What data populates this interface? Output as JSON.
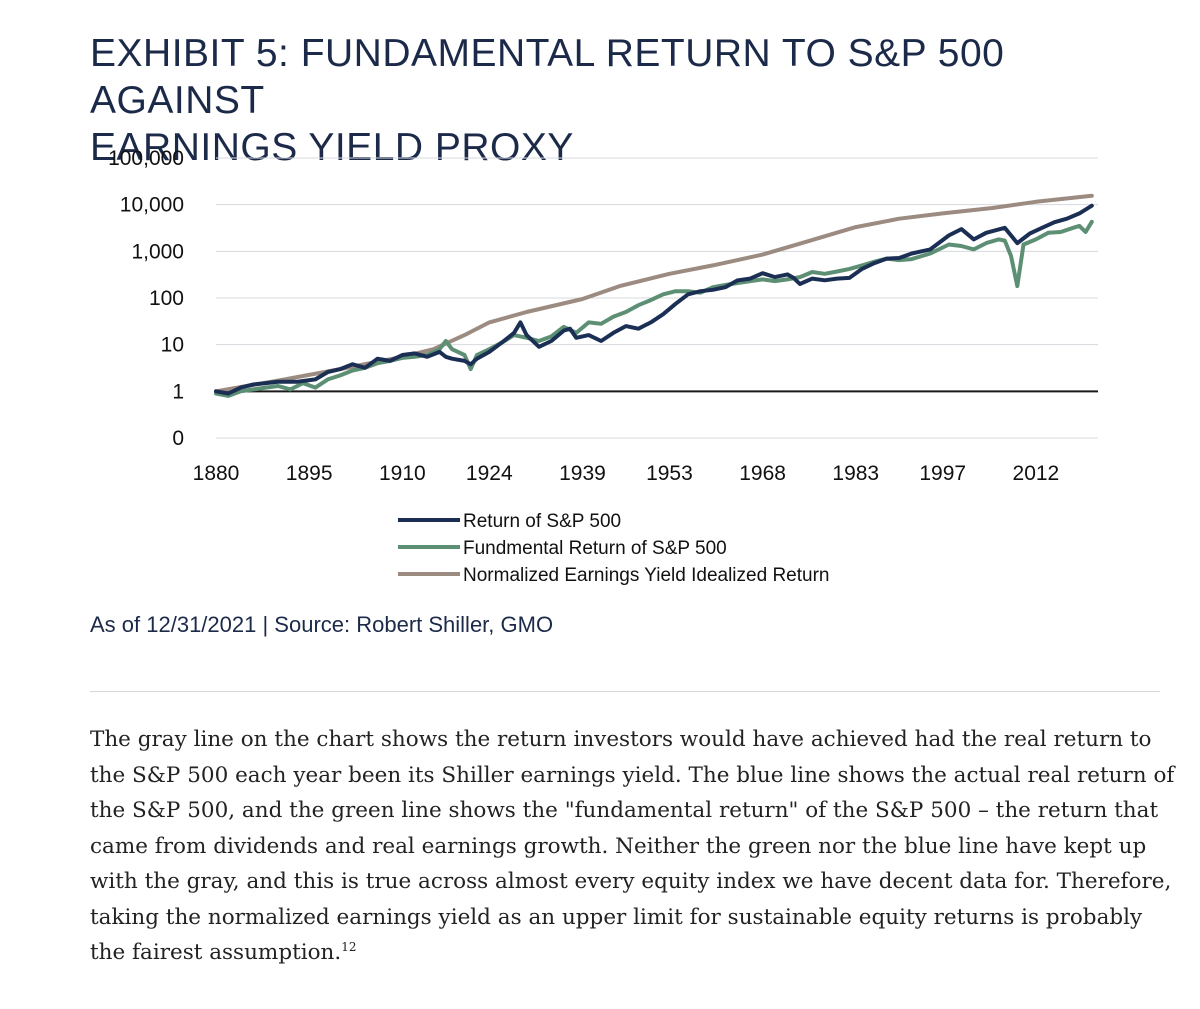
{
  "title": {
    "line1": "EXHIBIT 5: FUNDAMENTAL RETURN TO S&P 500 AGAINST",
    "line2": "EARNINGS YIELD PROXY"
  },
  "chart_data": {
    "type": "line",
    "title": "EXHIBIT 5: FUNDAMENTAL RETURN TO S&P 500 AGAINST EARNINGS YIELD PROXY",
    "xlabel": "",
    "ylabel": "",
    "y_scale": "log",
    "xlim": [
      1880,
      2022
    ],
    "x_ticks": [
      1880,
      1895,
      1910,
      1924,
      1939,
      1953,
      1968,
      1983,
      1997,
      2012
    ],
    "x_tick_labels": [
      "1880",
      "1895",
      "1910",
      "1924",
      "1939",
      "1953",
      "1968",
      "1983",
      "1997",
      "2012"
    ],
    "y_ticks": [
      0.1,
      1,
      10,
      100,
      1000,
      10000,
      100000
    ],
    "y_tick_labels": [
      "0",
      "1",
      "10",
      "100",
      "1,000",
      "10,000",
      "100,000"
    ],
    "grid": "horizontal",
    "legend_position": "bottom-center",
    "series": [
      {
        "name": "Return of S&P 500",
        "color": "#1b2f55",
        "x": [
          1880,
          1882,
          1884,
          1886,
          1888,
          1890,
          1893,
          1896,
          1898,
          1900,
          1902,
          1904,
          1906,
          1908,
          1910,
          1912,
          1914,
          1916,
          1917,
          1918,
          1920,
          1921,
          1922,
          1924,
          1926,
          1928,
          1929,
          1930,
          1932,
          1934,
          1936,
          1937,
          1938,
          1940,
          1942,
          1944,
          1946,
          1948,
          1950,
          1952,
          1954,
          1956,
          1958,
          1960,
          1962,
          1964,
          1966,
          1968,
          1970,
          1972,
          1973,
          1974,
          1976,
          1978,
          1980,
          1982,
          1984,
          1986,
          1988,
          1990,
          1992,
          1995,
          1998,
          2000,
          2002,
          2004,
          2007,
          2008,
          2009,
          2011,
          2013,
          2015,
          2017,
          2019,
          2021
        ],
        "y": [
          1.0,
          0.9,
          1.2,
          1.4,
          1.5,
          1.6,
          1.6,
          1.8,
          2.6,
          3.0,
          3.8,
          3.2,
          5.0,
          4.5,
          6.0,
          6.5,
          5.5,
          7.0,
          5.5,
          5.0,
          4.5,
          3.8,
          5.0,
          7.0,
          11,
          18,
          30,
          16,
          9,
          12,
          20,
          22,
          14,
          16,
          12,
          18,
          25,
          22,
          30,
          45,
          75,
          120,
          140,
          150,
          170,
          240,
          260,
          340,
          280,
          320,
          270,
          200,
          260,
          240,
          260,
          270,
          420,
          560,
          700,
          720,
          900,
          1100,
          2200,
          3000,
          1800,
          2500,
          3200,
          2200,
          1500,
          2400,
          3200,
          4200,
          5000,
          6500,
          9500
        ]
      },
      {
        "name": "Fundmental Return of S&P 500",
        "color": "#5c8f73",
        "x": [
          1880,
          1882,
          1884,
          1886,
          1888,
          1890,
          1892,
          1894,
          1896,
          1898,
          1900,
          1902,
          1904,
          1906,
          1908,
          1910,
          1912,
          1914,
          1916,
          1917,
          1918,
          1920,
          1921,
          1922,
          1924,
          1926,
          1928,
          1930,
          1932,
          1934,
          1936,
          1938,
          1940,
          1942,
          1944,
          1946,
          1948,
          1950,
          1952,
          1954,
          1956,
          1958,
          1960,
          1962,
          1964,
          1966,
          1968,
          1970,
          1972,
          1974,
          1976,
          1978,
          1980,
          1982,
          1984,
          1986,
          1988,
          1990,
          1992,
          1995,
          1998,
          2000,
          2002,
          2004,
          2006,
          2007,
          2008,
          2009,
          2010,
          2012,
          2014,
          2016,
          2018,
          2019,
          2020,
          2021
        ],
        "y": [
          0.9,
          0.8,
          1.0,
          1.1,
          1.2,
          1.3,
          1.1,
          1.5,
          1.2,
          1.8,
          2.2,
          2.8,
          3.2,
          4.0,
          4.5,
          5.2,
          5.5,
          6.0,
          8.0,
          12,
          8.0,
          6.0,
          3.0,
          6.0,
          8.0,
          11,
          16,
          14,
          12,
          15,
          24,
          18,
          30,
          28,
          40,
          50,
          70,
          90,
          120,
          140,
          140,
          130,
          170,
          190,
          210,
          230,
          250,
          230,
          250,
          280,
          360,
          330,
          370,
          420,
          500,
          600,
          700,
          650,
          680,
          900,
          1400,
          1300,
          1100,
          1500,
          1800,
          1700,
          800,
          180,
          1400,
          1800,
          2500,
          2600,
          3200,
          3500,
          2600,
          4300
        ]
      },
      {
        "name": "Normalized Earnings Yield Idealized Return",
        "color": "#9c8b80",
        "x": [
          1880,
          1890,
          1900,
          1910,
          1915,
          1920,
          1924,
          1930,
          1939,
          1945,
          1953,
          1960,
          1968,
          1975,
          1983,
          1990,
          1997,
          2005,
          2012,
          2021
        ],
        "y": [
          1.0,
          1.7,
          3.0,
          5.5,
          8.0,
          16,
          30,
          50,
          95,
          180,
          330,
          500,
          850,
          1600,
          3300,
          5000,
          6500,
          8500,
          11500,
          15500
        ]
      }
    ]
  },
  "source": "As of 12/31/2021 | Source: Robert Shiller, GMO",
  "body": {
    "paragraph": "The gray line on the chart shows the return investors would have achieved had the real return to the S&P 500 each year been its Shiller earnings yield. The blue line shows the actual real return of the S&P 500, and the green line shows the \"fundamental return\" of the S&P 500 – the return that came from dividends and real earnings growth. Neither the green nor the blue line have kept up with the gray, and this is true across almost every equity index we have decent data for. Therefore, taking the normalized earnings yield as an upper limit for sustainable equity returns is probably the fairest assumption.",
    "footnote": "12"
  },
  "colors": {
    "title": "#1c2a4a",
    "axis_line": "#1a1a1a",
    "grid": "#d5d9de"
  }
}
